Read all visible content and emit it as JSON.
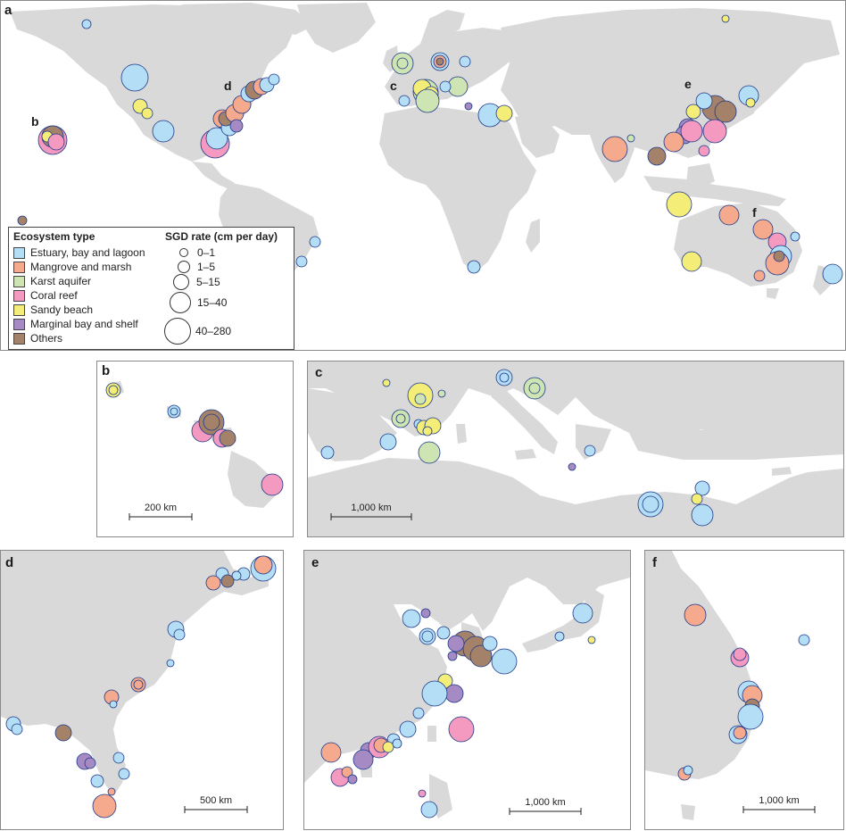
{
  "panel_labels": {
    "a": "a",
    "b": "b",
    "c": "c",
    "d": "d",
    "e": "e",
    "f": "f"
  },
  "legend": {
    "eco_title": "Ecosystem type",
    "rate_title": "SGD rate (cm per day)",
    "ecosystems": [
      {
        "label": "Estuary, bay and lagoon",
        "color": "#b3def5"
      },
      {
        "label": "Mangrove and marsh",
        "color": "#f5a98d"
      },
      {
        "label": "Karst aquifer",
        "color": "#cfe4b3"
      },
      {
        "label": "Coral reef",
        "color": "#f49ac1"
      },
      {
        "label": "Sandy beach",
        "color": "#f4ee79"
      },
      {
        "label": "Marginal bay and shelf",
        "color": "#a68ac4"
      },
      {
        "label": "Others",
        "color": "#a4826a"
      }
    ],
    "rates": [
      "0–1",
      "1–5",
      "5–15",
      "15–40",
      "40–280"
    ]
  },
  "scalebars": {
    "b": "200 km",
    "c": "1,000 km",
    "d": "500 km",
    "e": "1,000 km",
    "f": "1,000 km"
  },
  "colors": {
    "land": "#d9d9d9",
    "ocean": "#ffffff",
    "border": "#8a8a8a"
  }
}
